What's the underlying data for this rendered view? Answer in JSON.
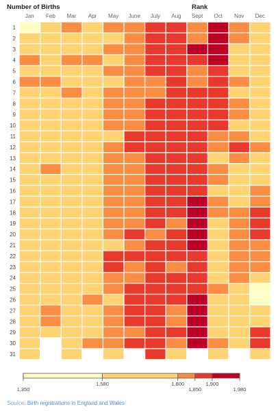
{
  "header": {
    "title": "Number of Births",
    "rank_label": "Rank"
  },
  "source": {
    "label": "Source:",
    "text": "Birth registrations in England and Wales"
  },
  "chart_data": {
    "type": "heatmap",
    "title": "",
    "xlabel": "",
    "ylabel": "",
    "months": [
      "Jan",
      "Feb",
      "Mar",
      "Apr",
      "May",
      "June",
      "July",
      "Aug",
      "Sept",
      "Oct",
      "Nov",
      "Dec"
    ],
    "days": [
      "1",
      "2",
      "3",
      "4",
      "5",
      "6",
      "7",
      "8",
      "9",
      "10",
      "11",
      "12",
      "13",
      "14",
      "15",
      "16",
      "17",
      "18",
      "19",
      "20",
      "21",
      "22",
      "23",
      "24",
      "25",
      "26",
      "27",
      "28",
      "29",
      "30",
      "31"
    ],
    "value_unit": "births per day",
    "color_scale": {
      "breaks": [
        1350,
        1580,
        1800,
        1850,
        1900,
        1980
      ],
      "tick_labels": [
        "1,350",
        "1,580",
        "1,800",
        "1,850",
        "1,900",
        "1,980"
      ],
      "colors": [
        "#ffffc4",
        "#fed372",
        "#fb8d43",
        "#e83a2c",
        "#bd0026"
      ]
    },
    "values": [
      [
        1420,
        1720,
        1810,
        1750,
        1820,
        1830,
        1870,
        1880,
        1830,
        1960,
        1830,
        1760
      ],
      [
        1710,
        1690,
        1700,
        1700,
        1770,
        1820,
        1890,
        1860,
        1840,
        1940,
        1800,
        1770
      ],
      [
        1690,
        1750,
        1790,
        1750,
        1800,
        1820,
        1880,
        1880,
        1900,
        1960,
        1770,
        1760
      ],
      [
        1810,
        1740,
        1820,
        1800,
        1780,
        1820,
        1860,
        1850,
        1880,
        1930,
        1790,
        1730
      ],
      [
        1730,
        1690,
        1710,
        1710,
        1810,
        1830,
        1870,
        1880,
        1830,
        1870,
        1780,
        1710
      ],
      [
        1810,
        1820,
        1790,
        1780,
        1760,
        1820,
        1830,
        1890,
        1830,
        1870,
        1800,
        1710
      ],
      [
        1720,
        1750,
        1810,
        1720,
        1800,
        1840,
        1830,
        1850,
        1860,
        1870,
        1790,
        1750
      ],
      [
        1710,
        1700,
        1730,
        1750,
        1810,
        1820,
        1890,
        1860,
        1870,
        1870,
        1820,
        1780
      ],
      [
        1700,
        1720,
        1720,
        1770,
        1810,
        1830,
        1880,
        1880,
        1870,
        1880,
        1800,
        1730
      ],
      [
        1700,
        1720,
        1710,
        1740,
        1810,
        1840,
        1880,
        1860,
        1870,
        1870,
        1770,
        1730
      ],
      [
        1700,
        1690,
        1740,
        1700,
        1750,
        1860,
        1880,
        1870,
        1870,
        1830,
        1820,
        1770
      ],
      [
        1710,
        1720,
        1720,
        1760,
        1810,
        1850,
        1880,
        1850,
        1860,
        1820,
        1860,
        1810
      ],
      [
        1690,
        1720,
        1710,
        1760,
        1800,
        1830,
        1880,
        1850,
        1860,
        1790,
        1800,
        1780
      ],
      [
        1700,
        1800,
        1720,
        1730,
        1810,
        1840,
        1870,
        1860,
        1860,
        1830,
        1780,
        1780
      ],
      [
        1710,
        1710,
        1700,
        1700,
        1810,
        1830,
        1880,
        1860,
        1880,
        1800,
        1780,
        1780
      ],
      [
        1710,
        1700,
        1710,
        1720,
        1800,
        1840,
        1880,
        1850,
        1870,
        1790,
        1770,
        1810
      ],
      [
        1700,
        1700,
        1700,
        1760,
        1810,
        1830,
        1880,
        1850,
        1940,
        1810,
        1790,
        1800
      ],
      [
        1700,
        1690,
        1700,
        1700,
        1810,
        1840,
        1880,
        1860,
        1950,
        1800,
        1820,
        1860
      ],
      [
        1700,
        1700,
        1700,
        1790,
        1810,
        1840,
        1870,
        1840,
        1970,
        1790,
        1830,
        1870
      ],
      [
        1700,
        1700,
        1700,
        1740,
        1810,
        1860,
        1820,
        1860,
        1970,
        1750,
        1820,
        1870
      ],
      [
        1700,
        1700,
        1700,
        1700,
        1790,
        1840,
        1880,
        1860,
        1950,
        1780,
        1840,
        1830
      ],
      [
        1700,
        1700,
        1700,
        1700,
        1860,
        1850,
        1870,
        1860,
        1890,
        1770,
        1830,
        1820
      ],
      [
        1700,
        1700,
        1700,
        1780,
        1860,
        1840,
        1870,
        1840,
        1880,
        1790,
        1810,
        1800
      ],
      [
        1700,
        1700,
        1700,
        1750,
        1820,
        1840,
        1850,
        1850,
        1860,
        1760,
        1810,
        1770
      ],
      [
        1700,
        1720,
        1710,
        1720,
        1820,
        1880,
        1860,
        1850,
        1860,
        1810,
        1760,
        1560
      ],
      [
        1700,
        1700,
        1730,
        1810,
        1790,
        1860,
        1870,
        1860,
        1950,
        1760,
        1770,
        1500
      ],
      [
        1700,
        1810,
        1700,
        1700,
        1810,
        1880,
        1850,
        1830,
        1950,
        1760,
        1760,
        1740
      ],
      [
        1700,
        1820,
        1700,
        1760,
        1830,
        1850,
        1870,
        1830,
        1950,
        1770,
        1770,
        1750
      ],
      [
        1720,
        1700,
        1750,
        1730,
        1830,
        1840,
        1870,
        1860,
        1950,
        1770,
        1760,
        1860
      ],
      [
        1720,
        null,
        1730,
        1810,
        1820,
        1850,
        1870,
        1840,
        1950,
        1800,
        1750,
        1860
      ],
      [
        1720,
        null,
        1700,
        null,
        1750,
        null,
        1870,
        1740,
        null,
        1790,
        null,
        1720
      ]
    ]
  }
}
